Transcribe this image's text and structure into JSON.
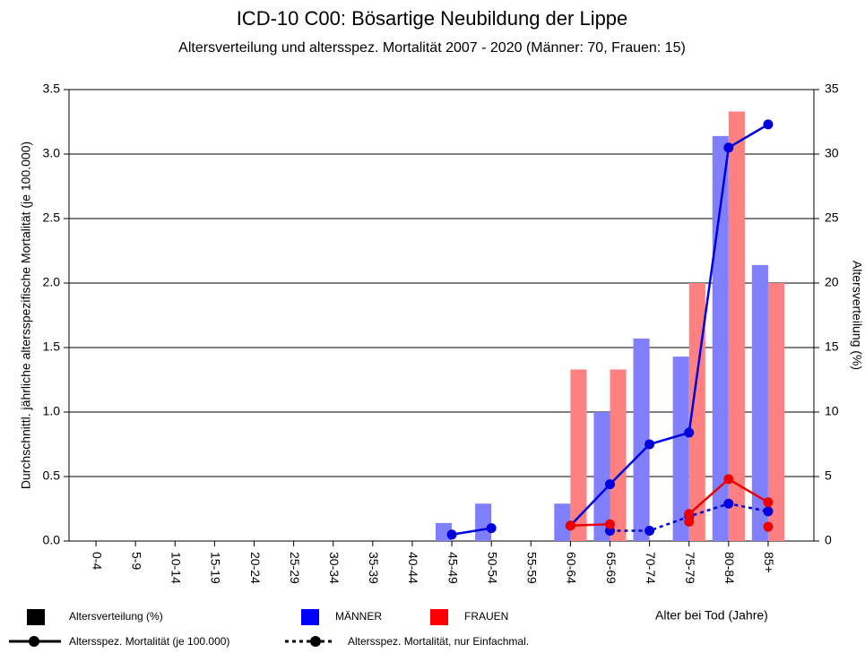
{
  "chart_data": {
    "type": "bar_line",
    "title": "ICD-10 C00: Bösartige Neubildung der Lippe",
    "subtitle": "Altersverteilung und altersspez. Mortalität 2007 - 2020 (Männer: 70, Frauen: 15)",
    "y_label": "Durchschnittl. jährliche altersspezifische Mortalität (je 100.000)",
    "y2_label": "Altersverteilung (%)",
    "x_label": "Alter bei Tod (Jahre)",
    "categories": [
      "0-4",
      "5-9",
      "10-14",
      "15-19",
      "20-24",
      "25-29",
      "30-34",
      "35-39",
      "40-44",
      "45-49",
      "50-54",
      "55-59",
      "60-64",
      "65-69",
      "70-74",
      "75-79",
      "80-84",
      "85+"
    ],
    "ylim": [
      0,
      3.5
    ],
    "yticks": [
      {
        "value": 0,
        "label": "0.0"
      },
      {
        "value": 0.5,
        "label": "0.5"
      },
      {
        "value": 1,
        "label": "1.0"
      },
      {
        "value": 1.5,
        "label": "1.5"
      },
      {
        "value": 2,
        "label": "2.0"
      },
      {
        "value": 2.5,
        "label": "2.5"
      },
      {
        "value": 3,
        "label": "3.0"
      },
      {
        "value": 3.5,
        "label": "3.5"
      }
    ],
    "y2lim": [
      0,
      35
    ],
    "y2ticks": [
      0,
      5,
      10,
      15,
      20,
      25,
      30,
      35
    ],
    "grid": true,
    "legend": {
      "bars": "Altersverteilung (%)",
      "mortality": "Altersspez. Mortalität (je 100.000)",
      "mortality_single": "Altersspez. Mortalität, nur Einfachmal."
    },
    "groups": [
      {
        "name": "MÄNNER",
        "color": "#0000dd",
        "bar_color": "#8080ff",
        "bars": [
          null,
          null,
          null,
          null,
          null,
          null,
          null,
          null,
          null,
          1.4,
          2.9,
          null,
          2.9,
          10.0,
          15.7,
          14.3,
          31.4,
          21.4
        ],
        "mortality": [
          null,
          null,
          null,
          null,
          null,
          null,
          null,
          null,
          null,
          0.05,
          0.1,
          null,
          0.12,
          0.44,
          0.75,
          0.84,
          3.05,
          3.23
        ],
        "mortality_single": [
          null,
          null,
          null,
          null,
          null,
          null,
          null,
          null,
          null,
          null,
          null,
          null,
          null,
          0.08,
          0.08,
          0.19,
          0.29,
          0.23
        ]
      },
      {
        "name": "FRAUEN",
        "color": "#ee0000",
        "bar_color": "#ff8080",
        "bars": [
          null,
          null,
          null,
          null,
          null,
          null,
          null,
          null,
          null,
          null,
          null,
          null,
          13.3,
          13.3,
          null,
          20.0,
          33.3,
          20.0
        ],
        "mortality": [
          null,
          null,
          null,
          null,
          null,
          null,
          null,
          null,
          null,
          null,
          null,
          null,
          0.12,
          0.13,
          null,
          0.21,
          0.48,
          0.3
        ],
        "mortality_single": [
          null,
          null,
          null,
          null,
          null,
          null,
          null,
          null,
          null,
          null,
          null,
          null,
          null,
          null,
          null,
          0.15,
          null,
          0.11
        ]
      }
    ]
  }
}
